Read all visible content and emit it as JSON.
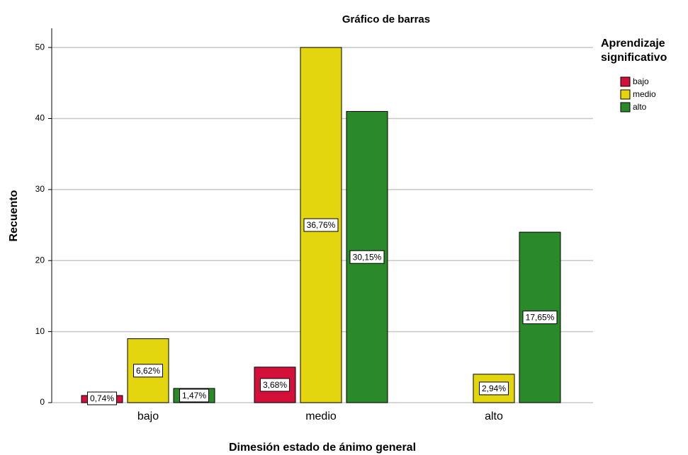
{
  "chart_data": {
    "type": "bar",
    "title": "Gráfico de barras",
    "x_label": "Dimesión estado de ánimo general",
    "y_label": "Recuento",
    "legend_title": [
      "Aprendizaje",
      "significativo"
    ],
    "categories": [
      "bajo",
      "medio",
      "alto"
    ],
    "series": [
      {
        "name": "bajo",
        "color": "#d3103a",
        "values": [
          1,
          5,
          0
        ],
        "percent_labels": [
          "0,74%",
          "3,68%",
          null
        ]
      },
      {
        "name": "medio",
        "color": "#e3d60f",
        "values": [
          9,
          50,
          4
        ],
        "percent_labels": [
          "6,62%",
          "36,76%",
          "2,94%"
        ]
      },
      {
        "name": "alto",
        "color": "#2a8a2a",
        "values": [
          2,
          41,
          24
        ],
        "percent_labels": [
          "1,47%",
          "30,15%",
          "17,65%"
        ]
      }
    ],
    "ylim": [
      0,
      52.7
    ],
    "yticks": [
      0,
      10,
      20,
      30,
      40,
      50
    ],
    "grid": true,
    "legend": "right"
  }
}
